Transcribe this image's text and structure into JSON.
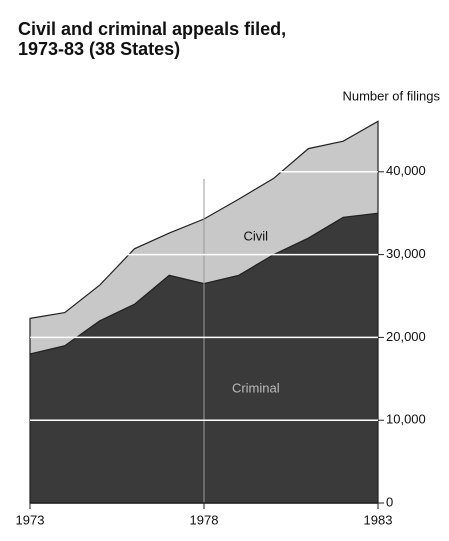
{
  "chart_data": {
    "type": "stacked_area",
    "title": "Civil and criminal appeals filed,",
    "subtitle": "1973-83 (38 States)",
    "y_axis_label": "Number of filings",
    "x": [
      1973,
      1974,
      1975,
      1976,
      1977,
      1978,
      1979,
      1980,
      1981,
      1982,
      1983
    ],
    "series": [
      {
        "name": "Civil",
        "color": "#c8c8c8",
        "values": [
          4300,
          4000,
          4300,
          6700,
          5100,
          7800,
          9200,
          9200,
          10800,
          9200,
          11100
        ]
      },
      {
        "name": "Criminal",
        "color": "#3a3a3a",
        "values": [
          18000,
          19000,
          22000,
          24000,
          27500,
          26500,
          27500,
          30000,
          32000,
          34500,
          35000
        ]
      }
    ],
    "xlim": [
      1973,
      1983
    ],
    "xticks": [
      1973,
      1978,
      1983
    ],
    "ylim": [
      0,
      50000
    ],
    "yticks": [
      0,
      {
        "value": 10000,
        "label": "10,000"
      },
      {
        "value": 20000,
        "label": "20,000"
      },
      {
        "value": 30000,
        "label": "30,000"
      },
      {
        "value": 40000,
        "label": "40,000"
      }
    ],
    "grid": true
  }
}
